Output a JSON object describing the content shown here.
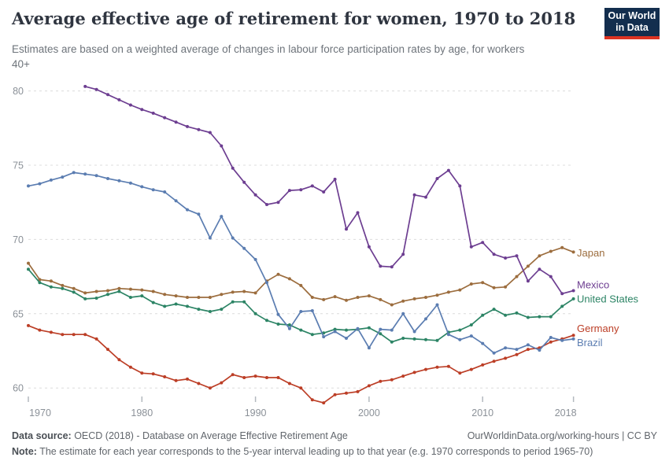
{
  "header": {
    "title": "Average effective age of retirement for women, 1970 to 2018",
    "subtitle_line1": "Estimates are based on a weighted average of changes in labour force participation rates by age, for workers",
    "subtitle_line2": "40+",
    "logo": {
      "line1": "Our World",
      "line2": "in Data",
      "bg_color": "#132e4e",
      "accent_color": "#dc3322",
      "text_color": "#ffffff"
    }
  },
  "chart_data": {
    "type": "line",
    "title": "Average effective age of retirement for women, 1970 to 2018",
    "xlabel": "",
    "ylabel": "",
    "x_start": 1970,
    "x_end": 2018,
    "ylim": [
      58.5,
      81.5
    ],
    "yticks": [
      60,
      65,
      70,
      75,
      80
    ],
    "xticks": [
      1970,
      1980,
      1990,
      2000,
      2010,
      2018
    ],
    "grid": "horizontal-dashed",
    "grid_color": "#dcdcdc",
    "tick_label_color": "#8b9198",
    "legend_position": "right-end-labels",
    "series": [
      {
        "name": "Japan",
        "color": "#9c6d3e",
        "start_year": 1970,
        "label_value": 69.1,
        "values": [
          68.4,
          67.3,
          67.2,
          66.9,
          66.7,
          66.4,
          66.5,
          66.55,
          66.7,
          66.65,
          66.6,
          66.5,
          66.3,
          66.2,
          66.1,
          66.1,
          66.1,
          66.3,
          66.45,
          66.5,
          66.4,
          67.2,
          67.65,
          67.35,
          66.9,
          66.1,
          65.95,
          66.15,
          65.9,
          66.1,
          66.2,
          65.95,
          65.6,
          65.85,
          66.0,
          66.1,
          66.25,
          66.45,
          66.6,
          67.0,
          67.1,
          66.75,
          66.8,
          67.5,
          68.2,
          68.9,
          69.2,
          69.45,
          69.15
        ]
      },
      {
        "name": "Mexico",
        "color": "#6d3e91",
        "start_year": 1975,
        "label_value": 66.95,
        "values": [
          80.3,
          80.1,
          79.75,
          79.4,
          79.05,
          78.75,
          78.5,
          78.2,
          77.9,
          77.6,
          77.4,
          77.2,
          76.3,
          74.8,
          73.85,
          73.0,
          72.35,
          72.5,
          73.3,
          73.35,
          73.6,
          73.2,
          74.05,
          70.7,
          71.8,
          69.5,
          68.2,
          68.15,
          69.0,
          73.0,
          72.85,
          74.1,
          74.65,
          73.6,
          69.5,
          69.8,
          69.0,
          68.75,
          68.9,
          67.2,
          68.0,
          67.5,
          66.35,
          66.55
        ]
      },
      {
        "name": "United States",
        "color": "#2c8465",
        "start_year": 1970,
        "label_value": 66.0,
        "values": [
          68.0,
          67.1,
          66.8,
          66.7,
          66.45,
          66.0,
          66.05,
          66.3,
          66.5,
          66.1,
          66.2,
          65.75,
          65.5,
          65.65,
          65.5,
          65.3,
          65.15,
          65.3,
          65.8,
          65.8,
          65.0,
          64.55,
          64.3,
          64.25,
          63.9,
          63.6,
          63.7,
          63.95,
          63.9,
          63.95,
          64.05,
          63.65,
          63.1,
          63.35,
          63.3,
          63.25,
          63.2,
          63.75,
          63.9,
          64.25,
          64.9,
          65.3,
          64.9,
          65.05,
          64.75,
          64.8,
          64.8,
          65.5,
          66.0
        ]
      },
      {
        "name": "Germany",
        "color": "#bc3e26",
        "start_year": 1970,
        "label_value": 64.0,
        "values": [
          64.2,
          63.9,
          63.75,
          63.6,
          63.6,
          63.6,
          63.3,
          62.6,
          61.9,
          61.4,
          61.0,
          60.95,
          60.75,
          60.5,
          60.6,
          60.3,
          60.0,
          60.35,
          60.9,
          60.7,
          60.8,
          60.7,
          60.7,
          60.3,
          60.0,
          59.2,
          59.0,
          59.55,
          59.65,
          59.75,
          60.15,
          60.45,
          60.55,
          60.8,
          61.05,
          61.25,
          61.4,
          61.45,
          61.0,
          61.25,
          61.55,
          61.8,
          62.0,
          62.25,
          62.6,
          62.7,
          63.1,
          63.3,
          63.55
        ]
      },
      {
        "name": "Brazil",
        "color": "#5b7db1",
        "start_year": 1970,
        "label_value": 63.05,
        "values": [
          73.6,
          73.75,
          74.0,
          74.2,
          74.5,
          74.4,
          74.3,
          74.1,
          73.95,
          73.8,
          73.55,
          73.35,
          73.2,
          72.6,
          72.0,
          71.7,
          70.1,
          71.55,
          70.1,
          69.4,
          68.65,
          67.1,
          64.95,
          64.0,
          65.15,
          65.2,
          63.45,
          63.8,
          63.35,
          64.0,
          62.7,
          63.95,
          63.9,
          65.0,
          63.8,
          64.65,
          65.6,
          63.6,
          63.25,
          63.5,
          63.0,
          62.35,
          62.7,
          62.6,
          62.9,
          62.55,
          63.4,
          63.2,
          63.3
        ]
      }
    ]
  },
  "footer": {
    "source_label": "Data source:",
    "source_text": " OECD (2018) - Database on Average Effective Retirement Age",
    "link_text": "OurWorldinData.org/working-hours | CC BY",
    "note_label": "Note:",
    "note_text": " The estimate for each year corresponds to the 5-year interval leading up to that year (e.g. 1970 corresponds to period 1965-70)"
  }
}
